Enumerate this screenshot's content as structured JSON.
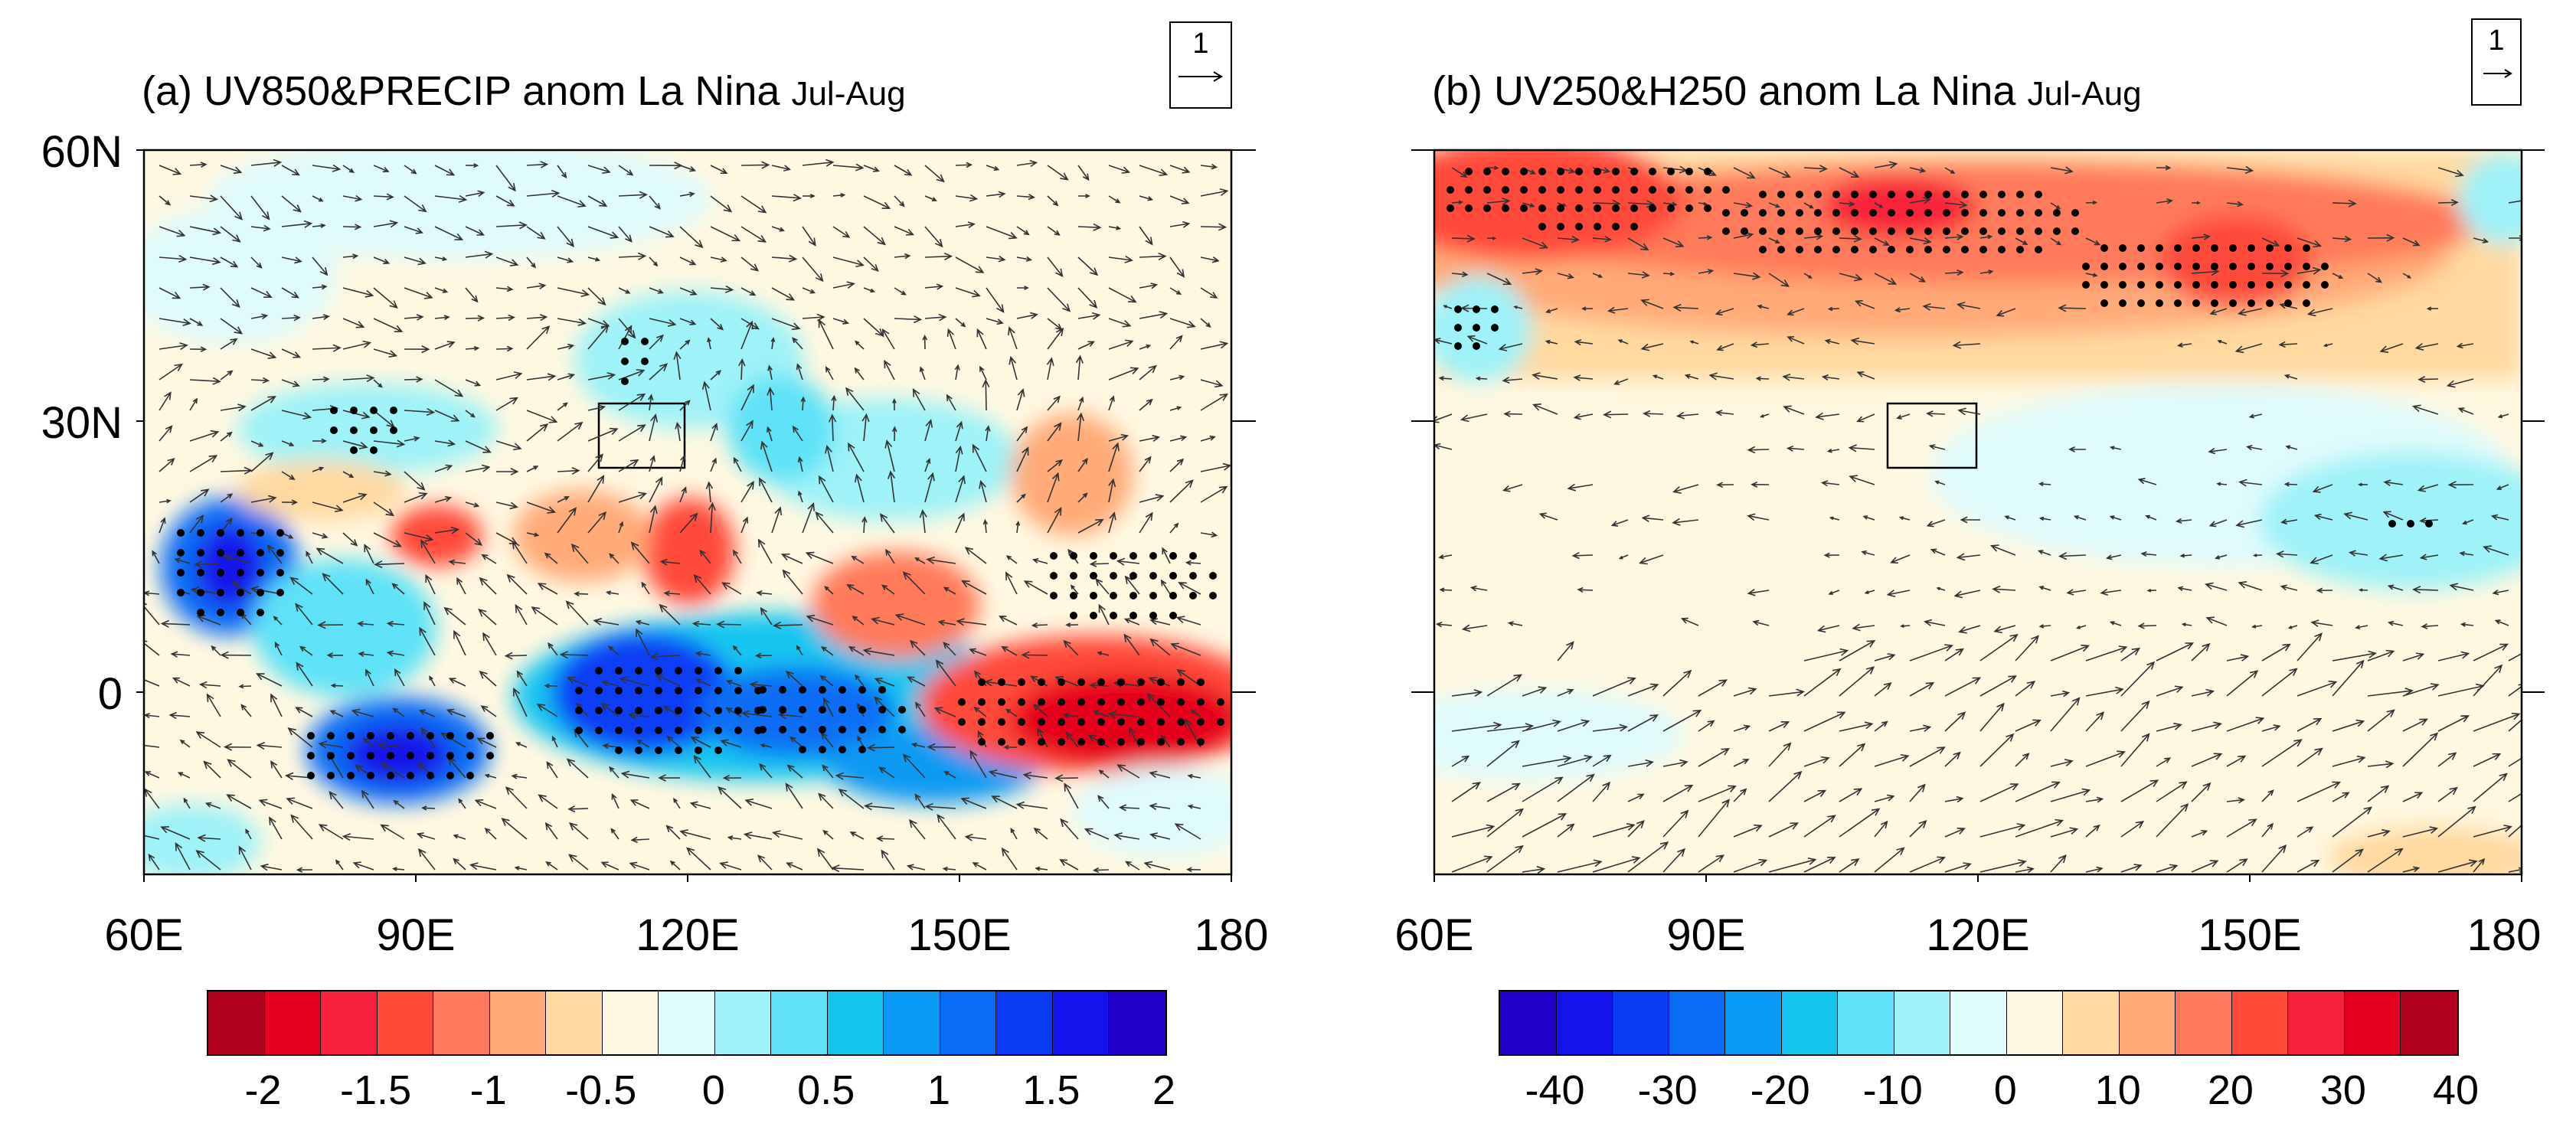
{
  "panels": {
    "a": {
      "label": "(a)",
      "title_main": "UV850&PRECIP anom La Nina",
      "title_period": "Jul-Aug",
      "ref_vector": "1",
      "x_ticks": [
        "60E",
        "90E",
        "120E",
        "150E",
        "180"
      ],
      "y_ticks": [
        "60N",
        "30N",
        "0"
      ],
      "colorbar": {
        "colors": [
          "#b2001f",
          "#e5001f",
          "#f8203a",
          "#ff4a3a",
          "#ff7a5a",
          "#ffaa78",
          "#ffd9a0",
          "#fff8e1",
          "#e0fbfc",
          "#9ef2f8",
          "#5fe2f7",
          "#12c6f0",
          "#0a9af3",
          "#0a6ef5",
          "#0a3cf5",
          "#1414ea",
          "#2400cc"
        ],
        "labels": [
          "-2",
          "-1.5",
          "-1",
          "-0.5",
          "0",
          "0.5",
          "1",
          "1.5",
          "2"
        ]
      }
    },
    "b": {
      "label": "(b)",
      "title_main": "UV250&H250 anom La Nina",
      "title_period": "Jul-Aug",
      "ref_vector": "1",
      "x_ticks": [
        "60E",
        "90E",
        "120E",
        "150E",
        "180"
      ],
      "colorbar": {
        "colors": [
          "#2400cc",
          "#1414ea",
          "#0a3cf5",
          "#0a6ef5",
          "#0a9af3",
          "#12c6f0",
          "#5fe2f7",
          "#9ef2f8",
          "#e0fbfc",
          "#fff8e1",
          "#ffd9a0",
          "#ffaa78",
          "#ff7a5a",
          "#ff4a3a",
          "#f8203a",
          "#e5001f",
          "#b2001f"
        ],
        "labels": [
          "-40",
          "-30",
          "-20",
          "-10",
          "0",
          "10",
          "20",
          "30",
          "40"
        ]
      }
    }
  },
  "colors": {
    "frame": "#000000",
    "stipple": "#000000"
  }
}
